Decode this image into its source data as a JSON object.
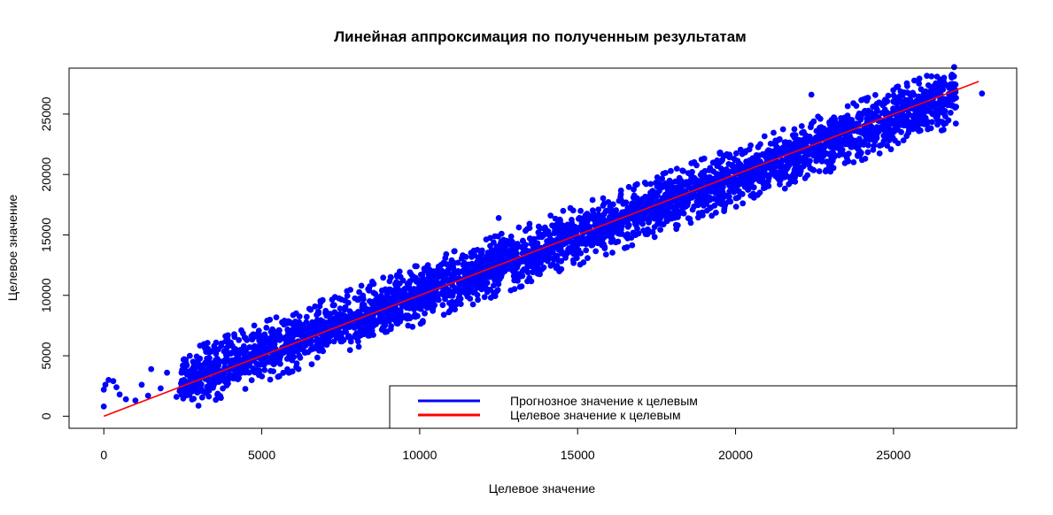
{
  "chart_data": {
    "type": "scatter",
    "title": "Линейная аппроксимация по полученным результатам",
    "xlabel": "Целевое значение",
    "ylabel": "Целевое значение",
    "xlim": [
      -1100,
      28900
    ],
    "ylim": [
      -1000,
      28800
    ],
    "x_ticks": [
      0,
      5000,
      10000,
      15000,
      20000,
      25000
    ],
    "y_ticks": [
      0,
      5000,
      10000,
      15000,
      20000,
      25000
    ],
    "grid": false,
    "legend_position": "bottom-right",
    "series": [
      {
        "name": "Прогнозное значение к целевым",
        "kind": "points",
        "color": "#0000FF",
        "trend": {
          "x_range": [
            0,
            27000
          ],
          "slope": 0.97,
          "intercept": 400,
          "spread": 1500
        },
        "outliers": [
          [
            0,
            800
          ],
          [
            0,
            2200
          ],
          [
            50,
            2600
          ],
          [
            150,
            3000
          ],
          [
            300,
            2900
          ],
          [
            400,
            2400
          ],
          [
            500,
            1800
          ],
          [
            700,
            1400
          ],
          [
            1000,
            1300
          ],
          [
            1200,
            2600
          ],
          [
            1400,
            1700
          ],
          [
            1500,
            3900
          ],
          [
            1800,
            2300
          ],
          [
            2000,
            3600
          ],
          [
            2300,
            1600
          ],
          [
            2600,
            4400
          ],
          [
            12500,
            16400
          ],
          [
            22400,
            26600
          ],
          [
            25500,
            26200
          ],
          [
            27800,
            26700
          ],
          [
            26600,
            28000
          ]
        ]
      },
      {
        "name": "Целевое значение к целевым",
        "kind": "line",
        "color": "#FF0000",
        "x": [
          0,
          27700
        ],
        "y": [
          0,
          27700
        ]
      }
    ]
  }
}
